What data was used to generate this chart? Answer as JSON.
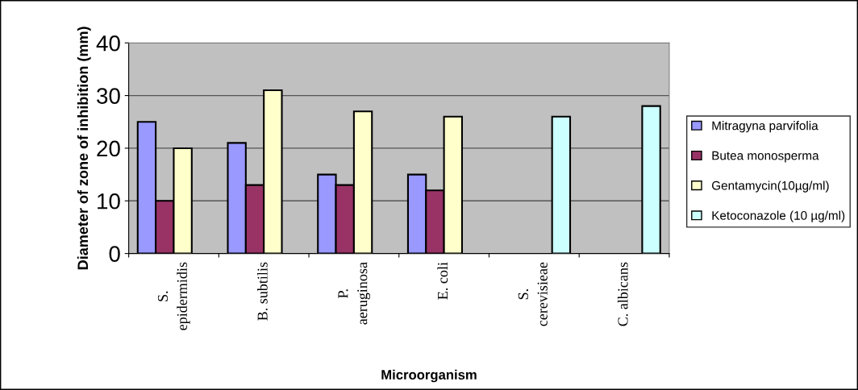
{
  "chart_data": {
    "type": "bar",
    "categories": [
      "S.\nepidermidis",
      "B. subtilis",
      "P.\naeruginosa",
      "E. coli",
      "S.\ncerevisieae",
      "C. albicans"
    ],
    "series": [
      {
        "name": "Mitragyna parvifolia",
        "color": "#9999ff",
        "values": [
          25,
          21,
          15,
          15,
          null,
          null
        ]
      },
      {
        "name": "Butea monosperma",
        "color": "#993366",
        "values": [
          10,
          13,
          13,
          12,
          null,
          null
        ]
      },
      {
        "name": "Gentamycin(10µg/ml)",
        "color": "#ffffcc",
        "values": [
          20,
          31,
          27,
          26,
          null,
          null
        ]
      },
      {
        "name": "Ketoconazole (10 µg/ml)",
        "color": "#ccffff",
        "values": [
          null,
          null,
          null,
          null,
          26,
          28
        ]
      }
    ],
    "xlabel": "Microorganism",
    "ylabel": "Diameter of zone of inhibition (mm)",
    "ylim": [
      0,
      40
    ],
    "yticks": [
      0,
      10,
      20,
      30,
      40
    ],
    "grid": "y",
    "legend": "right"
  }
}
